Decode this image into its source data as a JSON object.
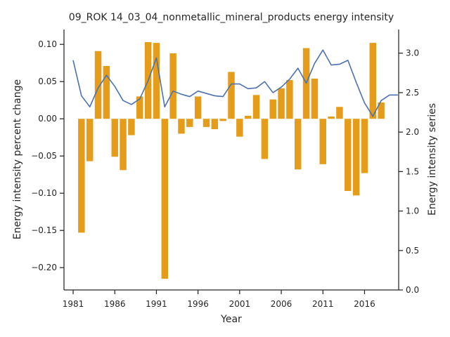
{
  "chart_data": {
    "type": "bar+line",
    "title": "09_ROK 14_03_04_nonmetallic_mineral_products energy intensity",
    "xlabel": "Year",
    "ylabel_left": "Energy intensity percent change",
    "ylabel_right": "Energy intensity series",
    "xlim": [
      1979.9,
      2020.1
    ],
    "ylim_left": [
      -0.23,
      0.12
    ],
    "ylim_right": [
      0.0,
      3.3
    ],
    "x_ticks": [
      1981,
      1986,
      1991,
      1996,
      2001,
      2006,
      2011,
      2016
    ],
    "x_tick_labels": [
      "1981",
      "1986",
      "1991",
      "1996",
      "2001",
      "2006",
      "2011",
      "2016"
    ],
    "y_left_ticks": [
      0.1,
      0.05,
      0.0,
      -0.05,
      -0.1,
      -0.15,
      -0.2
    ],
    "y_left_tick_labels": [
      "0.10",
      "0.05",
      "0.00",
      "−0.05",
      "−0.10",
      "−0.15",
      "−0.20"
    ],
    "y_right_ticks": [
      3.0,
      2.5,
      2.0,
      1.5,
      1.0,
      0.5,
      0.0
    ],
    "y_right_tick_labels": [
      "3.0",
      "2.5",
      "2.0",
      "1.5",
      "1.0",
      "0.5",
      "0.0"
    ],
    "bar_color": "#e59c1a",
    "line_color": "#4c72b0",
    "years": [
      1981,
      1982,
      1983,
      1984,
      1985,
      1986,
      1987,
      1988,
      1989,
      1990,
      1991,
      1992,
      1993,
      1994,
      1995,
      1996,
      1997,
      1998,
      1999,
      2000,
      2001,
      2002,
      2003,
      2004,
      2005,
      2006,
      2007,
      2008,
      2009,
      2010,
      2011,
      2012,
      2013,
      2014,
      2015,
      2016,
      2017,
      2018,
      2019,
      2020
    ],
    "series": [
      {
        "kind": "bar",
        "axis": "left",
        "values": [
          null,
          -0.153,
          -0.057,
          0.091,
          0.071,
          -0.051,
          -0.069,
          -0.022,
          0.03,
          0.103,
          0.102,
          -0.215,
          0.088,
          -0.02,
          -0.011,
          0.03,
          -0.011,
          -0.014,
          -0.003,
          0.063,
          -0.024,
          0.004,
          0.032,
          -0.054,
          0.026,
          0.041,
          0.052,
          -0.068,
          0.095,
          0.054,
          -0.061,
          0.003,
          0.016,
          -0.097,
          -0.103,
          -0.073,
          0.102,
          0.022,
          null,
          null
        ]
      },
      {
        "kind": "line",
        "axis": "right",
        "values": [
          2.91,
          2.46,
          2.32,
          2.56,
          2.72,
          2.58,
          2.4,
          2.35,
          2.42,
          2.65,
          2.94,
          2.32,
          2.52,
          2.48,
          2.45,
          2.52,
          2.49,
          2.46,
          2.45,
          2.61,
          2.61,
          2.55,
          2.56,
          2.64,
          2.5,
          2.57,
          2.67,
          2.81,
          2.62,
          2.87,
          3.04,
          2.85,
          2.86,
          2.91,
          2.63,
          2.37,
          2.2,
          2.4,
          2.47,
          2.47
        ]
      }
    ]
  }
}
